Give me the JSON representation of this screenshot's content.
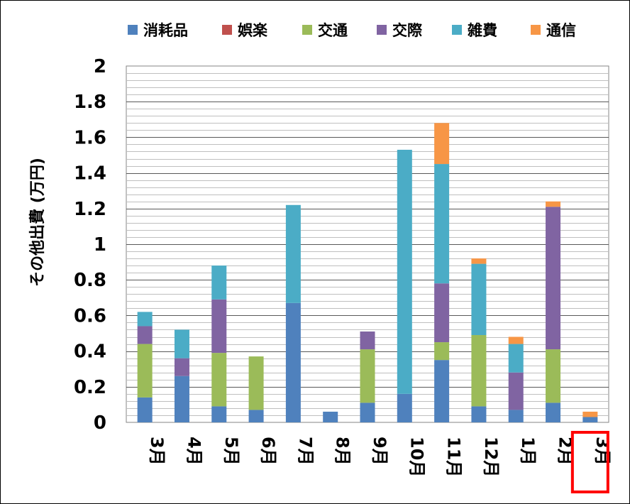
{
  "chart_data": {
    "type": "bar",
    "stacked": true,
    "ylabel": "その他出費 (万円)",
    "ylim": [
      0,
      2
    ],
    "yticks": [
      "0",
      "0.2",
      "0.4",
      "0.6",
      "0.8",
      "1",
      "1.2",
      "1.4",
      "1.6",
      "1.8",
      "2"
    ],
    "grid": true,
    "legend_position": "top",
    "categories": [
      "3月",
      "4月",
      "5月",
      "6月",
      "7月",
      "8月",
      "9月",
      "10月",
      "11月",
      "12月",
      "1月",
      "2月",
      "3月"
    ],
    "highlighted_category_index": 12,
    "highlight_color": "#ff0000",
    "series": [
      {
        "name": "消耗品",
        "color": "#4f81bd",
        "values": [
          0.14,
          0.26,
          0.09,
          0.07,
          0.67,
          0.06,
          0.11,
          0.16,
          0.35,
          0.09,
          0.07,
          0.11,
          0.03
        ]
      },
      {
        "name": "娯楽",
        "color": "#c0504d",
        "values": [
          0,
          0,
          0,
          0,
          0,
          0,
          0,
          0,
          0,
          0,
          0,
          0,
          0
        ]
      },
      {
        "name": "交通",
        "color": "#9bbb59",
        "values": [
          0.3,
          0,
          0.3,
          0.3,
          0,
          0,
          0.3,
          0,
          0.1,
          0.4,
          0,
          0.3,
          0
        ]
      },
      {
        "name": "交際",
        "color": "#8064a2",
        "values": [
          0.1,
          0.1,
          0.3,
          0,
          0,
          0,
          0.1,
          0,
          0.33,
          0,
          0.21,
          0.8,
          0
        ]
      },
      {
        "name": "雑費",
        "color": "#4bacc6",
        "values": [
          0.08,
          0.16,
          0.19,
          0,
          0.55,
          0,
          0,
          1.37,
          0.67,
          0.4,
          0.16,
          0,
          0
        ]
      },
      {
        "name": "通信",
        "color": "#f79646",
        "values": [
          0,
          0,
          0,
          0,
          0,
          0,
          0,
          0,
          0.23,
          0.03,
          0.04,
          0.03,
          0.03
        ]
      }
    ]
  }
}
